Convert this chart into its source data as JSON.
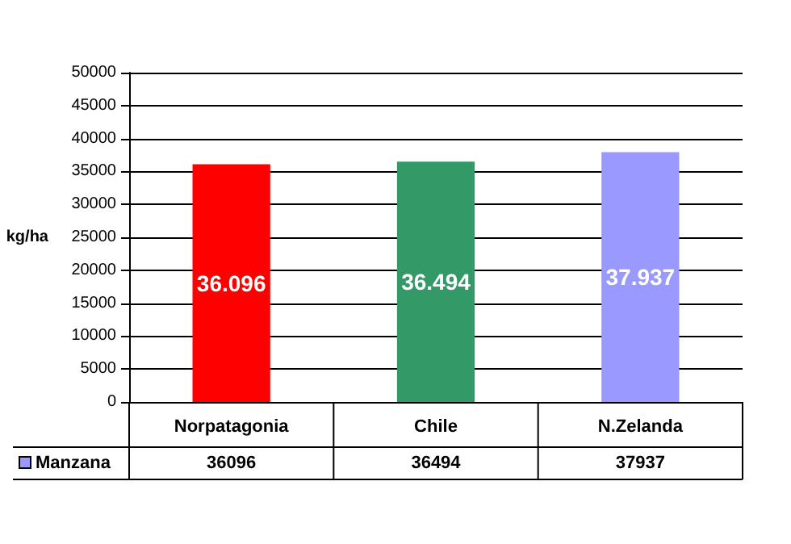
{
  "chart_data": {
    "type": "bar",
    "ylabel": "kg/ha",
    "categories": [
      "Norpatagonia",
      "Chile",
      "N.Zelanda"
    ],
    "series": [
      {
        "name": "Manzana",
        "color": "#9999ff",
        "colors": [
          "#ff0000",
          "#339966",
          "#9999ff"
        ],
        "values": [
          36096,
          36494,
          37937
        ],
        "value_labels": [
          "36.096",
          "36.494",
          "37.937"
        ]
      }
    ],
    "ylim": [
      0,
      50000
    ],
    "yticks": [
      0,
      5000,
      10000,
      15000,
      20000,
      25000,
      30000,
      35000,
      40000,
      45000,
      50000
    ],
    "grid": "y",
    "legend": "bottom left",
    "annotations": [
      "36096",
      "36494",
      "37937"
    ]
  }
}
